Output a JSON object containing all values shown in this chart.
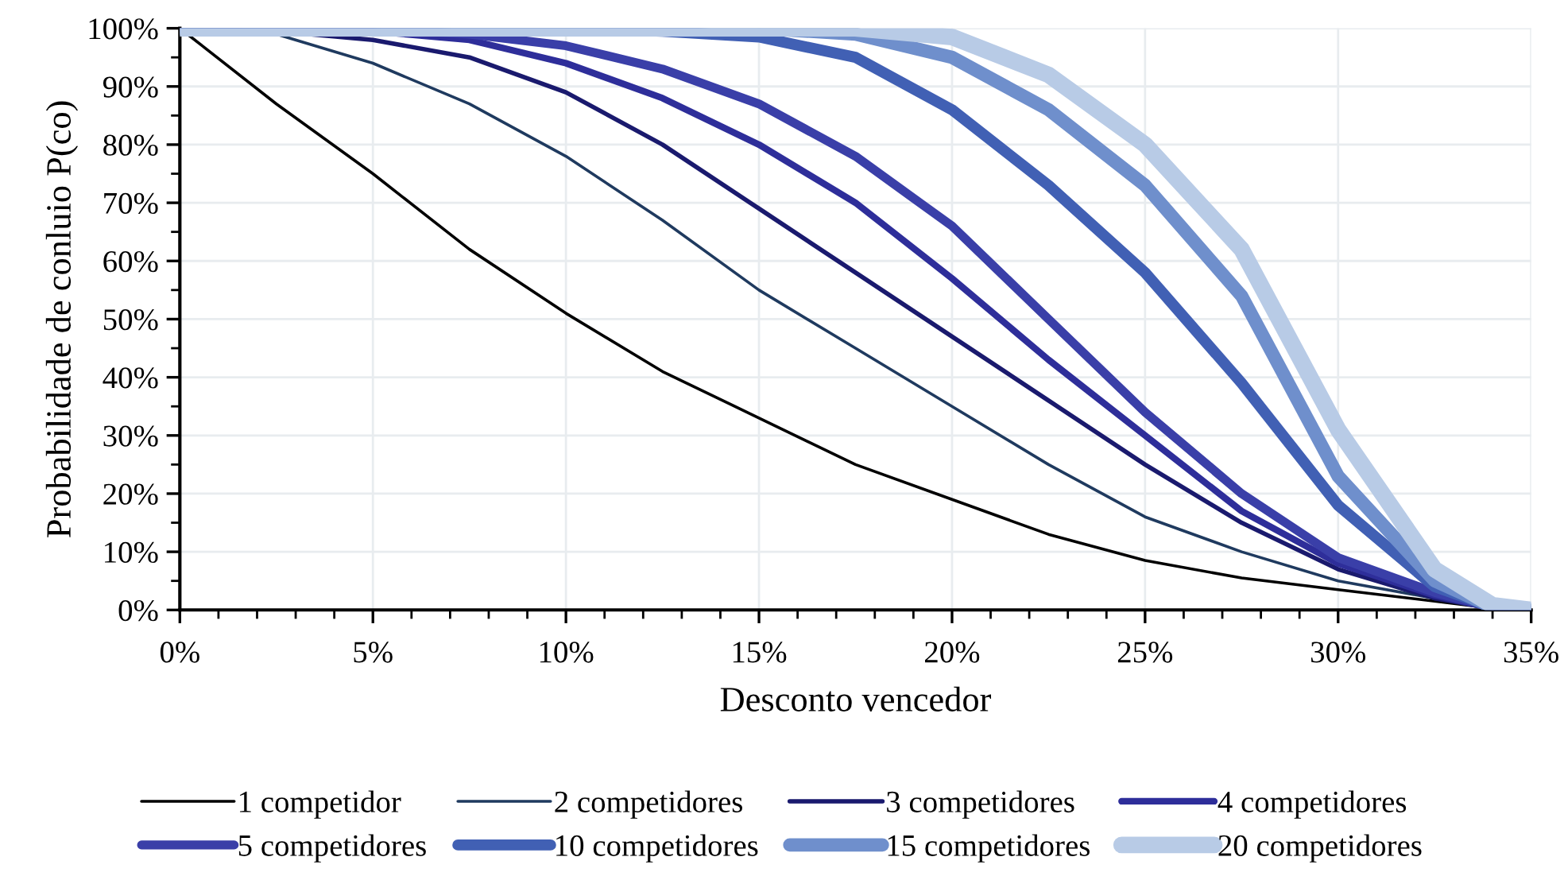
{
  "chart_data": {
    "type": "line",
    "xlabel": "Desconto vencedor",
    "ylabel": "Probabilidade de conluio P(co)",
    "xlim": [
      0,
      35
    ],
    "ylim": [
      0,
      100
    ],
    "xticks": [
      {
        "value": 0,
        "label": "0%"
      },
      {
        "value": 5,
        "label": "5%"
      },
      {
        "value": 10,
        "label": "10%"
      },
      {
        "value": 15,
        "label": "15%"
      },
      {
        "value": 20,
        "label": "20%"
      },
      {
        "value": 25,
        "label": "25%"
      },
      {
        "value": 30,
        "label": "30%"
      },
      {
        "value": 35,
        "label": "35%"
      }
    ],
    "yticks": [
      {
        "value": 0,
        "label": "0%"
      },
      {
        "value": 10,
        "label": "10%"
      },
      {
        "value": 20,
        "label": "20%"
      },
      {
        "value": 30,
        "label": "30%"
      },
      {
        "value": 40,
        "label": "40%"
      },
      {
        "value": 50,
        "label": "50%"
      },
      {
        "value": 60,
        "label": "60%"
      },
      {
        "value": 70,
        "label": "70%"
      },
      {
        "value": 80,
        "label": "80%"
      },
      {
        "value": 90,
        "label": "90%"
      },
      {
        "value": 100,
        "label": "100%"
      }
    ],
    "grid": true,
    "legend": "bottom",
    "marker": "none",
    "line_style": "solid",
    "series": [
      {
        "name": "1 competidor",
        "color": "#000000",
        "x": [
          0,
          2.5,
          5,
          7.5,
          10,
          12.5,
          15,
          17.5,
          20,
          22.5,
          25,
          27.5,
          30,
          32.5,
          34,
          35
        ],
        "values": [
          100,
          87,
          75,
          62,
          51,
          41,
          33,
          25,
          19,
          13,
          8.5,
          5.5,
          3.5,
          1.5,
          0.3,
          0
        ]
      },
      {
        "name": "2 competidores",
        "color": "#1f3a5f",
        "x": [
          0,
          2.5,
          5,
          7.5,
          10,
          12.5,
          15,
          17.5,
          20,
          22.5,
          25,
          27.5,
          30,
          32.5,
          34,
          35
        ],
        "values": [
          100,
          99,
          94,
          87,
          78,
          67,
          55,
          45,
          35,
          25,
          16,
          10,
          5,
          2,
          0.3,
          0
        ]
      },
      {
        "name": "3 competidores",
        "color": "#1a1a6e",
        "x": [
          0,
          2.5,
          5,
          7.5,
          10,
          12.5,
          15,
          17.5,
          20,
          22.5,
          25,
          27.5,
          30,
          32.5,
          34,
          35
        ],
        "values": [
          100,
          99.5,
          98,
          95,
          89,
          80,
          69,
          58,
          47,
          36,
          25,
          15,
          7,
          2,
          0.3,
          0
        ]
      },
      {
        "name": "4 competidores",
        "color": "#2e2e9a",
        "x": [
          0,
          5,
          7.5,
          10,
          12.5,
          15,
          17.5,
          20,
          22.5,
          25,
          27.5,
          30,
          32.5,
          34,
          35
        ],
        "values": [
          100,
          99.5,
          98,
          94,
          88,
          80,
          70,
          57,
          43,
          30,
          17,
          8,
          2.5,
          0.3,
          0
        ]
      },
      {
        "name": "5 competidores",
        "color": "#3a3fa8",
        "x": [
          0,
          5,
          7.5,
          10,
          12.5,
          15,
          17.5,
          20,
          22.5,
          25,
          27.5,
          30,
          32.5,
          34,
          35
        ],
        "values": [
          100,
          100,
          99,
          97,
          93,
          87,
          78,
          66,
          50,
          34,
          20,
          9,
          3,
          0.4,
          0
        ]
      },
      {
        "name": "10 competidores",
        "color": "#4160b4",
        "x": [
          0,
          10,
          12.5,
          15,
          17.5,
          20,
          22.5,
          25,
          27.5,
          30,
          32.5,
          34,
          35
        ],
        "values": [
          100,
          100,
          99.5,
          98.5,
          95,
          86,
          73,
          58,
          39,
          18,
          4,
          0.5,
          0
        ]
      },
      {
        "name": "15 competidores",
        "color": "#6f8fcc",
        "x": [
          0,
          15,
          17.5,
          20,
          22.5,
          25,
          27.5,
          30,
          32.5,
          34,
          35
        ],
        "values": [
          100,
          100,
          99,
          95,
          86,
          73,
          54,
          23,
          5,
          0.5,
          0
        ]
      },
      {
        "name": "20 competidores",
        "color": "#b8cbe6",
        "x": [
          0,
          17.5,
          20,
          22.5,
          25,
          27.5,
          30,
          32.5,
          34,
          35
        ],
        "values": [
          100,
          100,
          98.5,
          92,
          80,
          62,
          31,
          7,
          0.8,
          0
        ]
      }
    ]
  }
}
